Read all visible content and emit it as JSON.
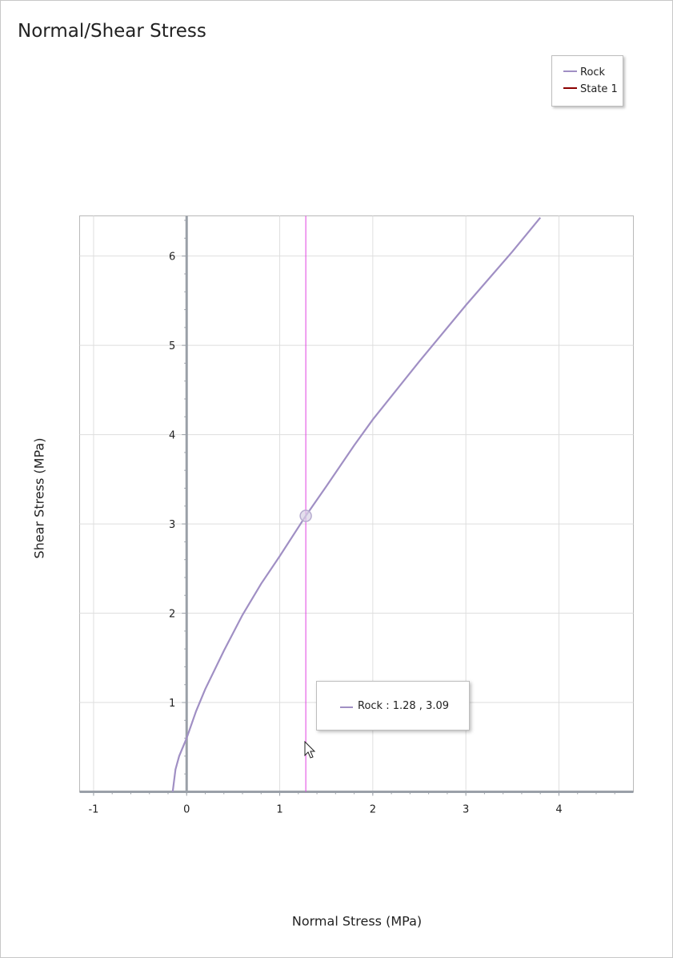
{
  "chart_data": {
    "type": "line",
    "title": "Normal/Shear Stress",
    "xlabel": "Normal Stress (MPa)",
    "ylabel": "Shear Stress (MPa)",
    "xlim": [
      -1.15,
      4.8
    ],
    "ylim": [
      0,
      6.45
    ],
    "xticks": [
      "-1",
      "0",
      "1",
      "2",
      "3",
      "4"
    ],
    "yticks": [
      "1",
      "2",
      "3",
      "4",
      "5",
      "6"
    ],
    "grid": true,
    "legend_position": "top-right",
    "legend": [
      {
        "name": "Rock",
        "color": "#a08fc4"
      },
      {
        "name": "State 1",
        "color": "#8b0000"
      }
    ],
    "series": [
      {
        "name": "Rock",
        "color": "#a08fc4",
        "x": [
          -0.15,
          -0.12,
          -0.08,
          0.0,
          0.1,
          0.2,
          0.4,
          0.6,
          0.8,
          1.0,
          1.28,
          1.5,
          1.8,
          2.0,
          2.5,
          3.0,
          3.5,
          3.8
        ],
        "y": [
          0.0,
          0.25,
          0.4,
          0.6,
          0.9,
          1.15,
          1.58,
          1.98,
          2.33,
          2.64,
          3.09,
          3.42,
          3.88,
          4.17,
          4.82,
          5.45,
          6.05,
          6.43
        ]
      }
    ],
    "crosshair": {
      "x": 1.28,
      "color": "#e040e0"
    },
    "highlight_point": {
      "x": 1.28,
      "y": 3.09
    }
  },
  "tooltip": {
    "text": "Rock : 1.28 , 3.09",
    "swatch_color": "#a08fc4"
  }
}
